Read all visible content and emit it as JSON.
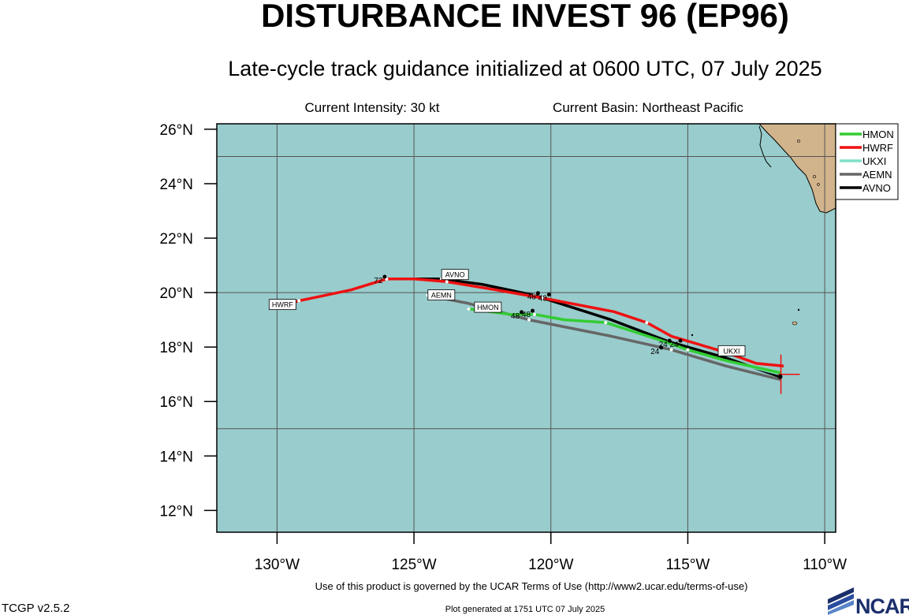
{
  "header": {
    "title": "DISTURBANCE INVEST 96 (EP96)",
    "subtitle": "Late-cycle track guidance initialized at 0600 UTC, 07 July 2025",
    "intensity": "Current Intensity: 30 kt",
    "basin": "Current Basin: Northeast Pacific"
  },
  "map": {
    "lon_range": [
      -132.2,
      -109.6
    ],
    "lat_range": [
      11.2,
      26.2
    ],
    "colors": {
      "ocean": "#99cccc",
      "land": "#d2b48c",
      "grid": "#555555"
    },
    "lat_ticks": [
      {
        "value": 26,
        "label": "26°N"
      },
      {
        "value": 24,
        "label": "24°N"
      },
      {
        "value": 22,
        "label": "22°N"
      },
      {
        "value": 20,
        "label": "20°N"
      },
      {
        "value": 18,
        "label": "18°N"
      },
      {
        "value": 16,
        "label": "16°N"
      },
      {
        "value": 14,
        "label": "14°N"
      },
      {
        "value": 12,
        "label": "12°N"
      }
    ],
    "lon_ticks": [
      {
        "value": -130,
        "label": "130°W"
      },
      {
        "value": -125,
        "label": "125°W"
      },
      {
        "value": -120,
        "label": "120°W"
      },
      {
        "value": -115,
        "label": "115°W"
      },
      {
        "value": -110,
        "label": "110°W"
      }
    ],
    "gridlines": {
      "lon": [
        -130,
        -125,
        -120,
        -115,
        -110
      ],
      "lat": [
        25,
        20,
        15
      ]
    },
    "current_position": {
      "lon": -111.6,
      "lat": 17.0
    }
  },
  "legend": {
    "items": [
      {
        "name": "HMON",
        "color": "#33cc33"
      },
      {
        "name": "HWRF",
        "color": "#ee1111"
      },
      {
        "name": "UKXI",
        "color": "#80e0c8"
      },
      {
        "name": "AEMN",
        "color": "#666666"
      },
      {
        "name": "AVNO",
        "color": "#000000"
      }
    ]
  },
  "tracks": [
    {
      "name": "AEMN",
      "color": "#666666",
      "points": [
        [
          -111.6,
          16.8
        ],
        [
          -113.6,
          17.3
        ],
        [
          -115.6,
          17.9
        ],
        [
          -117.8,
          18.4
        ],
        [
          -120.8,
          19.0
        ],
        [
          -123.0,
          19.6
        ],
        [
          -124.5,
          19.9
        ]
      ],
      "hour_labels": [
        {
          "text": "24",
          "lon": -116.2,
          "lat": 17.75
        }
      ],
      "tag": {
        "text": "AEMN",
        "lon": -124.0,
        "lat": 19.9
      }
    },
    {
      "name": "AVNO",
      "color": "#000000",
      "points": [
        [
          -111.6,
          16.9
        ],
        [
          -113.6,
          17.6
        ],
        [
          -115.7,
          18.2
        ],
        [
          -117.8,
          19.0
        ],
        [
          -120.6,
          19.9
        ],
        [
          -122.5,
          20.3
        ],
        [
          -124.0,
          20.5
        ],
        [
          -125.5,
          20.5
        ]
      ],
      "hour_labels": [
        {
          "text": "24",
          "lon": -115.5,
          "lat": 18.0
        },
        {
          "text": "48",
          "lon": -120.7,
          "lat": 19.75
        }
      ],
      "tag": {
        "text": "AVNO",
        "lon": -123.5,
        "lat": 20.65
      }
    },
    {
      "name": "UKXI",
      "color": "#80e0c8",
      "points": [
        [
          -111.6,
          17.0
        ],
        [
          -112.8,
          17.3
        ],
        [
          -113.6,
          17.5
        ]
      ],
      "hour_labels": [],
      "tag": {
        "text": "UKXI",
        "lon": -113.4,
        "lat": 17.85
      }
    },
    {
      "name": "HMON",
      "color": "#33cc33",
      "points": [
        [
          -111.6,
          17.05
        ],
        [
          -113.6,
          17.5
        ],
        [
          -115.0,
          17.9
        ],
        [
          -116.0,
          18.25
        ],
        [
          -118.0,
          18.9
        ],
        [
          -119.5,
          19.0
        ],
        [
          -120.6,
          19.2
        ],
        [
          -121.5,
          19.2
        ],
        [
          -123.0,
          19.4
        ]
      ],
      "hour_labels": [
        {
          "text": "24",
          "lon": -115.9,
          "lat": 18.0
        },
        {
          "text": "48",
          "lon": -121.3,
          "lat": 19.05
        },
        {
          "text": "48",
          "lon": -120.9,
          "lat": 19.1
        }
      ],
      "tag": {
        "text": "HMON",
        "lon": -122.3,
        "lat": 19.45
      }
    },
    {
      "name": "HWRF",
      "color": "#ee1111",
      "points": [
        [
          -111.5,
          17.3
        ],
        [
          -112.5,
          17.4
        ],
        [
          -113.6,
          17.8
        ],
        [
          -115.6,
          18.4
        ],
        [
          -116.5,
          18.9
        ],
        [
          -117.7,
          19.3
        ],
        [
          -120.3,
          19.8
        ],
        [
          -122.0,
          20.1
        ],
        [
          -123.8,
          20.4
        ],
        [
          -125.0,
          20.5
        ],
        [
          -126.0,
          20.5
        ],
        [
          -127.3,
          20.1
        ],
        [
          -129.2,
          19.7
        ],
        [
          -130.0,
          19.5
        ]
      ],
      "hour_labels": [
        {
          "text": "48",
          "lon": -120.3,
          "lat": 19.7
        },
        {
          "text": "72",
          "lon": -126.3,
          "lat": 20.35
        }
      ],
      "tag": {
        "text": "HWRF",
        "lon": -129.8,
        "lat": 19.55
      }
    }
  ],
  "footer": {
    "terms": "Use of this product is governed by the UCAR Terms of Use (http://www2.ucar.edu/terms-of-use)",
    "version": "TCGP v2.5.2",
    "generated": "Plot generated at 1751 UTC   07 July 2025",
    "logo_text": "NCAR"
  }
}
